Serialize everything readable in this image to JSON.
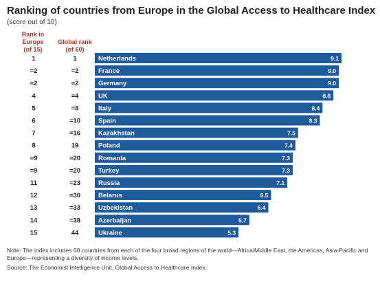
{
  "header": {
    "title": "Ranking of countries from Europe in the Global Access to Healthcare Index",
    "subtitle": "(score out of 10)",
    "col_europe": [
      "Rank in",
      "Europe",
      "(of 15)"
    ],
    "col_global": [
      "Global rank",
      "(of 60)"
    ]
  },
  "colors": {
    "bar": "#1f5b9a",
    "rank": "#b5332a",
    "text": "#222222",
    "bar_text": "#ffffff"
  },
  "chart_data": {
    "type": "bar",
    "orientation": "horizontal",
    "title": "Ranking of countries from Europe in the Global Access to Healthcare Index",
    "subtitle": "(score out of 10)",
    "categories": [
      "Netherlands",
      "France",
      "Germany",
      "UK",
      "Italy",
      "Spain",
      "Kazakhstan",
      "Poland",
      "Romania",
      "Turkey",
      "Russia",
      "Belarus",
      "Uzbekistan",
      "Azerbaijan",
      "Ukraine"
    ],
    "values": [
      9.1,
      9.0,
      9.0,
      8.8,
      8.4,
      8.3,
      7.5,
      7.4,
      7.3,
      7.3,
      7.1,
      6.5,
      6.4,
      5.7,
      5.3
    ],
    "value_labels": [
      "9.1",
      "9.0",
      "9.0",
      "8.8",
      "8.4",
      "8.3",
      "7.5",
      "7.4",
      "7.3",
      "7.3",
      "7.1",
      "6.5",
      "6.4",
      "5.7",
      "5.3"
    ],
    "europe_rank": [
      "1",
      "=2",
      "=2",
      "4",
      "5",
      "6",
      "7",
      "8",
      "=9",
      "=9",
      "11",
      "12",
      "13",
      "14",
      "15"
    ],
    "global_rank": [
      "1",
      "=2",
      "=2",
      "=4",
      "=8",
      "=10",
      "=16",
      "19",
      "=20",
      "=20",
      "=23",
      "=30",
      "=33",
      "=38",
      "44"
    ],
    "xlim": [
      0,
      10
    ],
    "grid": false,
    "legend": "none"
  },
  "footer": {
    "note": "Note: The index includes 60 countries from each of the four broad regions of the world—Africa/Middle East, the Americas, Asia-Pacific and Europe—representing a diversity of income levels.",
    "source": "Source: The Economist Intelligence Unit, Global Access to Healthcare Index."
  }
}
